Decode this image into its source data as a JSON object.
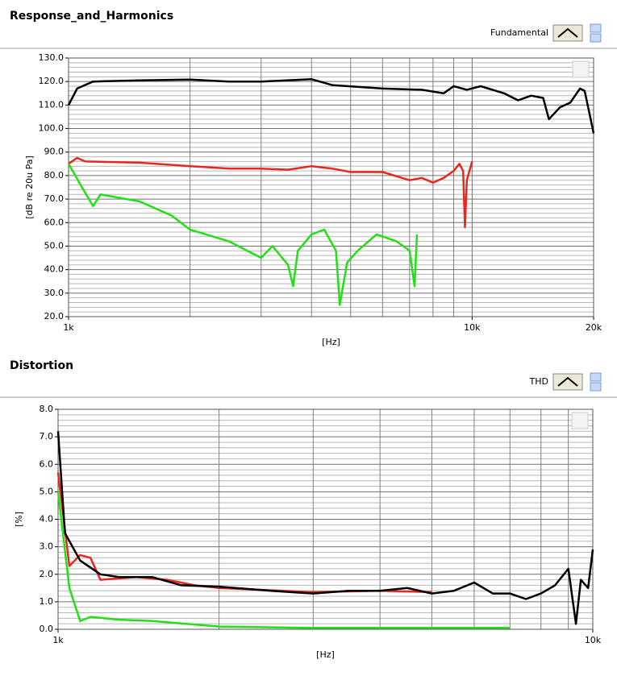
{
  "chart_data": [
    {
      "type": "line",
      "title": "Response_and_Harmonics",
      "plot_selector": "Fundamental",
      "xlabel": "[Hz]",
      "ylabel": "[dB re 20u Pa]",
      "xscale": "log",
      "xlim": [
        1000,
        20000
      ],
      "ylim": [
        20,
        130
      ],
      "xticks": [
        {
          "value": 1000,
          "label": "1k"
        },
        {
          "value": 10000,
          "label": "10k"
        },
        {
          "value": 20000,
          "label": "20k"
        }
      ],
      "xminorticks": [
        2000,
        3000,
        4000,
        5000,
        6000,
        7000,
        8000,
        9000
      ],
      "yticks": [
        {
          "value": 20,
          "label": "20.0"
        },
        {
          "value": 30,
          "label": "30.0"
        },
        {
          "value": 40,
          "label": "40.0"
        },
        {
          "value": 50,
          "label": "50.0"
        },
        {
          "value": 60,
          "label": "60.0"
        },
        {
          "value": 70,
          "label": "70.0"
        },
        {
          "value": 80,
          "label": "80.0"
        },
        {
          "value": 90,
          "label": "90.0"
        },
        {
          "value": 100,
          "label": "100.0"
        },
        {
          "value": 110,
          "label": "110.0"
        },
        {
          "value": 120,
          "label": "120.0"
        },
        {
          "value": 130,
          "label": "130.0"
        }
      ],
      "yminorticks": [
        22,
        24,
        26,
        28,
        32,
        34,
        36,
        38,
        42,
        44,
        46,
        48,
        52,
        54,
        56,
        58,
        62,
        64,
        66,
        68,
        72,
        74,
        76,
        78,
        82,
        84,
        86,
        88,
        92,
        94,
        96,
        98,
        102,
        104,
        106,
        108,
        112,
        114,
        116,
        118,
        122,
        124,
        126,
        128
      ],
      "grid": true,
      "series": [
        {
          "color": "#000000",
          "x": [
            1000,
            1050,
            1150,
            1500,
            2000,
            2500,
            3000,
            4000,
            4500,
            6000,
            7500,
            8500,
            9000,
            9700,
            10500,
            12000,
            13000,
            14000,
            15000,
            15500,
            16500,
            17500,
            18500,
            19000,
            19500,
            20000
          ],
          "values": [
            110,
            117,
            120,
            120.5,
            120.8,
            120,
            120,
            121,
            118.5,
            117,
            116.5,
            115,
            118,
            116.5,
            118,
            115,
            112,
            114,
            113,
            104,
            109,
            111,
            117,
            116,
            107,
            98
          ]
        },
        {
          "color": "#e8281e",
          "x": [
            1000,
            1050,
            1100,
            1500,
            2000,
            2500,
            3000,
            3500,
            4000,
            4500,
            5000,
            6000,
            7000,
            7500,
            8000,
            8500,
            9000,
            9300,
            9500,
            9600,
            9700,
            10000
          ],
          "values": [
            85,
            87.5,
            86,
            85.5,
            84,
            83,
            83,
            82.5,
            84,
            83,
            81.5,
            81.5,
            78,
            79,
            77,
            79,
            82,
            85,
            82,
            58,
            78,
            86
          ]
        },
        {
          "color": "#22e014",
          "x": [
            1000,
            1080,
            1150,
            1200,
            1500,
            1800,
            2000,
            2500,
            3000,
            3200,
            3500,
            3600,
            3700,
            4000,
            4300,
            4600,
            4700,
            4900,
            5200,
            5800,
            6500,
            7000,
            7200,
            7300
          ],
          "values": [
            85,
            75,
            67,
            72,
            69,
            63,
            57,
            52,
            45,
            50,
            42,
            33,
            48,
            55,
            57,
            48,
            25,
            43,
            48,
            55,
            52,
            48,
            33,
            55
          ]
        }
      ]
    },
    {
      "type": "line",
      "title": "Distortion",
      "plot_selector": "THD",
      "xlabel": "[Hz]",
      "ylabel": "[%]",
      "xscale": "log",
      "xlim": [
        1000,
        10000
      ],
      "ylim": [
        0,
        8
      ],
      "xticks": [
        {
          "value": 1000,
          "label": "1k"
        },
        {
          "value": 10000,
          "label": "10k"
        }
      ],
      "xminorticks": [
        2000,
        3000,
        4000,
        5000,
        6000,
        7000,
        8000,
        9000
      ],
      "yticks": [
        {
          "value": 0,
          "label": "0.0"
        },
        {
          "value": 1,
          "label": "1.0"
        },
        {
          "value": 2,
          "label": "2.0"
        },
        {
          "value": 3,
          "label": "3.0"
        },
        {
          "value": 4,
          "label": "4.0"
        },
        {
          "value": 5,
          "label": "5.0"
        },
        {
          "value": 6,
          "label": "6.0"
        },
        {
          "value": 7,
          "label": "7.0"
        },
        {
          "value": 8,
          "label": "8.0"
        }
      ],
      "yminorticks": [
        0.2,
        0.4,
        0.6,
        0.8,
        1.2,
        1.4,
        1.6,
        1.8,
        2.2,
        2.4,
        2.6,
        2.8,
        3.2,
        3.4,
        3.6,
        3.8,
        4.2,
        4.4,
        4.6,
        4.8,
        5.2,
        5.4,
        5.6,
        5.8,
        6.2,
        6.4,
        6.6,
        6.8,
        7.2,
        7.4,
        7.6,
        7.8
      ],
      "grid": true,
      "series": [
        {
          "color": "#e8281e",
          "x": [
            1000,
            1050,
            1100,
            1150,
            1200,
            1400,
            1600,
            1800,
            2000,
            3000,
            4000,
            5000
          ],
          "values": [
            5.7,
            2.3,
            2.7,
            2.6,
            1.8,
            1.9,
            1.8,
            1.6,
            1.5,
            1.35,
            1.4,
            1.35
          ]
        },
        {
          "color": "#000000",
          "x": [
            1000,
            1030,
            1100,
            1200,
            1300,
            1500,
            1700,
            2000,
            2500,
            3000,
            3500,
            4000,
            4500,
            5000,
            5500,
            6000,
            6500,
            7000,
            7500,
            8000,
            8500,
            9000,
            9300,
            9500,
            9800,
            10000
          ],
          "values": [
            7.2,
            3.5,
            2.5,
            2.0,
            1.9,
            1.9,
            1.6,
            1.55,
            1.4,
            1.3,
            1.4,
            1.4,
            1.5,
            1.3,
            1.4,
            1.7,
            1.3,
            1.3,
            1.1,
            1.3,
            1.6,
            2.2,
            0.2,
            1.8,
            1.5,
            2.9
          ]
        },
        {
          "color": "#22e014",
          "x": [
            1000,
            1050,
            1100,
            1150,
            1300,
            1500,
            2000,
            3000,
            5000,
            7000
          ],
          "values": [
            5.0,
            1.5,
            0.3,
            0.45,
            0.35,
            0.3,
            0.1,
            0.05,
            0.05,
            0.05
          ]
        }
      ]
    }
  ]
}
